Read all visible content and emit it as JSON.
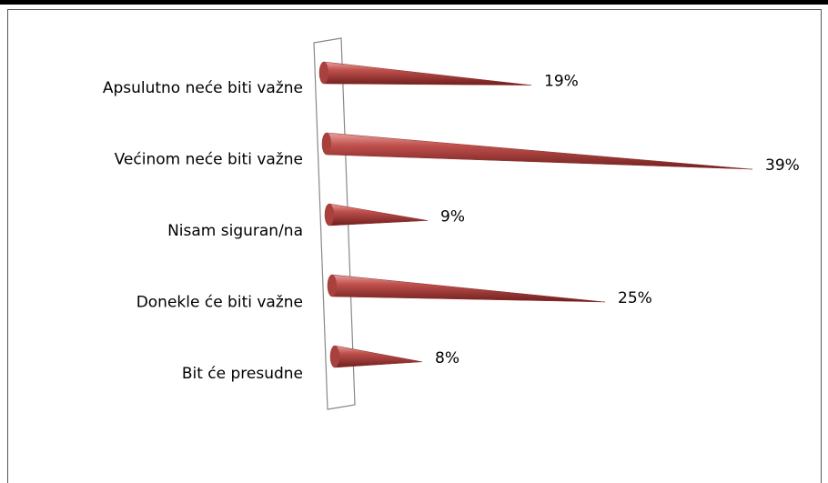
{
  "chart_data": {
    "type": "cone-bar",
    "categories": [
      "Apsulutno neće biti važne",
      "Većinom neće biti važne",
      "Nisam siguran/na",
      "Donekle će biti važne",
      "Bit će presudne"
    ],
    "values": [
      19,
      39,
      9,
      25,
      8
    ],
    "value_labels": [
      "19%",
      "39%",
      "9%",
      "25%",
      "8%"
    ],
    "color": "#c0504d"
  }
}
